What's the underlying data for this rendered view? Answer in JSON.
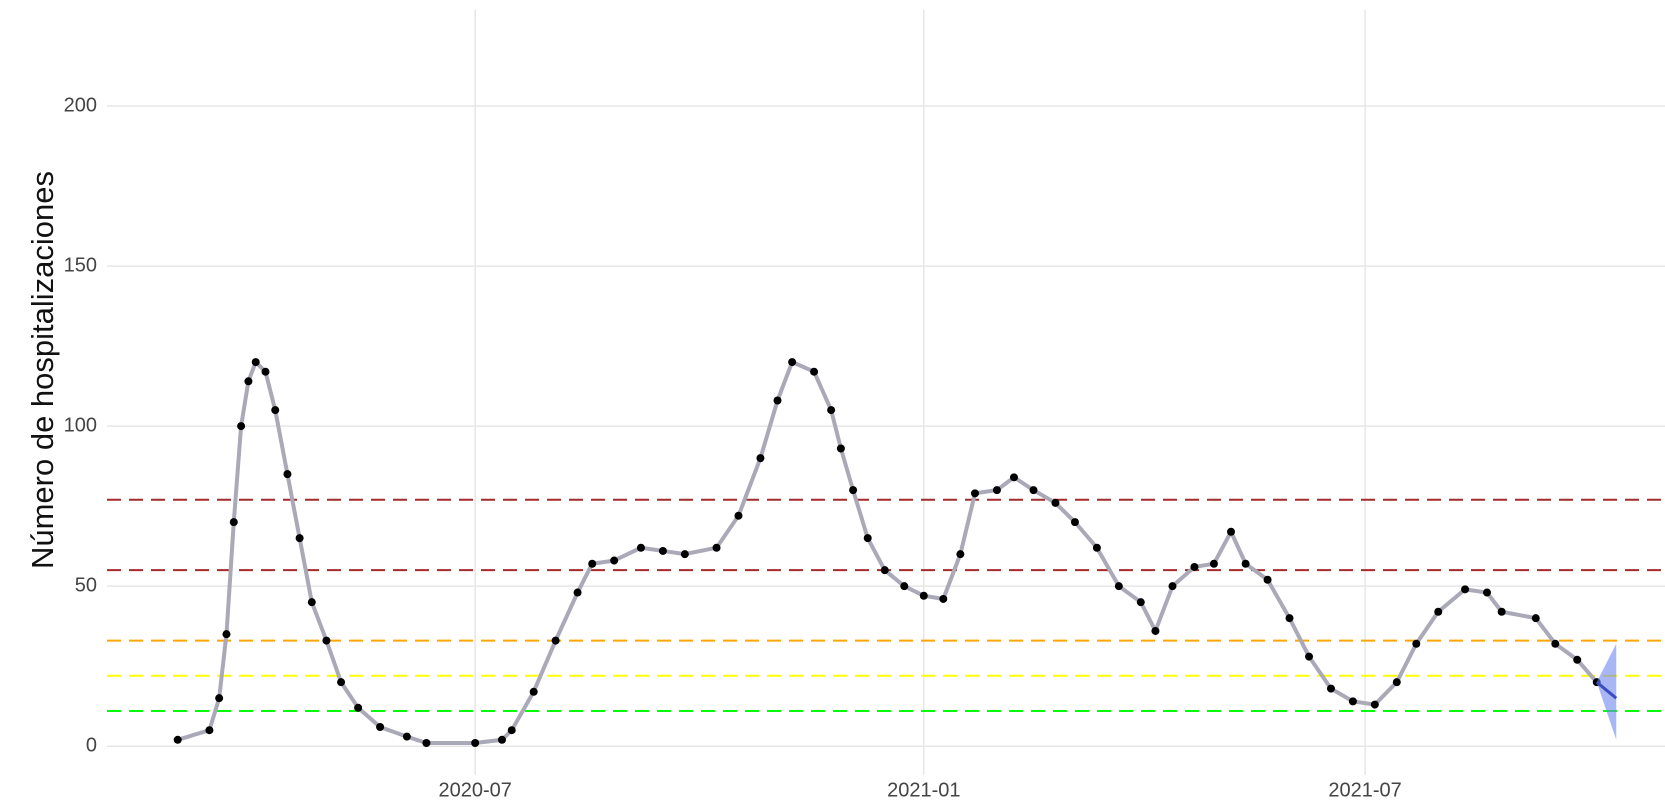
{
  "chart_data": {
    "type": "line",
    "ylabel": "Número de hospitalizaciones",
    "xlim": [
      "2020-02-01",
      "2021-11-01"
    ],
    "xticks": [
      "2020-07",
      "2021-01",
      "2021-07"
    ],
    "ylim": [
      -9,
      230
    ],
    "yticks": [
      0,
      50,
      100,
      150,
      200
    ],
    "grid": true,
    "series": [
      {
        "color": "#000000",
        "line_color": "#a9a9b8",
        "x": [
          "2020-03-01",
          "2020-03-14",
          "2020-03-18",
          "2020-03-21",
          "2020-03-24",
          "2020-03-27",
          "2020-03-30",
          "2020-04-02",
          "2020-04-06",
          "2020-04-10",
          "2020-04-15",
          "2020-04-20",
          "2020-04-25",
          "2020-05-01",
          "2020-05-07",
          "2020-05-14",
          "2020-05-23",
          "2020-06-03",
          "2020-06-11",
          "2020-07-01",
          "2020-07-12",
          "2020-07-16",
          "2020-07-25",
          "2020-08-03",
          "2020-08-12",
          "2020-08-18",
          "2020-08-27",
          "2020-09-07",
          "2020-09-16",
          "2020-09-25",
          "2020-10-08",
          "2020-10-17",
          "2020-10-26",
          "2020-11-02",
          "2020-11-08",
          "2020-11-17",
          "2020-11-24",
          "2020-11-28",
          "2020-12-03",
          "2020-12-09",
          "2020-12-16",
          "2020-12-24",
          "2021-01-01",
          "2021-01-09",
          "2021-01-16",
          "2021-01-22",
          "2021-01-31",
          "2021-02-07",
          "2021-02-15",
          "2021-02-24",
          "2021-03-04",
          "2021-03-13",
          "2021-03-22",
          "2021-03-31",
          "2021-04-06",
          "2021-04-13",
          "2021-04-22",
          "2021-04-30",
          "2021-05-07",
          "2021-05-13",
          "2021-05-22",
          "2021-05-31",
          "2021-06-08",
          "2021-06-17",
          "2021-06-26",
          "2021-07-05",
          "2021-07-14",
          "2021-07-22",
          "2021-07-31",
          "2021-08-11",
          "2021-08-20",
          "2021-08-26",
          "2021-09-09",
          "2021-09-17",
          "2021-09-26",
          "2021-10-04"
        ],
        "values": [
          2,
          5,
          15,
          35,
          70,
          100,
          114,
          120,
          117,
          105,
          85,
          65,
          45,
          33,
          20,
          12,
          6,
          3,
          1,
          1,
          2,
          5,
          17,
          33,
          48,
          57,
          58,
          62,
          61,
          60,
          62,
          72,
          90,
          108,
          120,
          117,
          105,
          93,
          80,
          65,
          55,
          50,
          47,
          46,
          60,
          79,
          80,
          84,
          80,
          76,
          70,
          62,
          50,
          45,
          36,
          50,
          56,
          57,
          67,
          57,
          52,
          40,
          28,
          18,
          14,
          13,
          20,
          32,
          42,
          49,
          48,
          42,
          40,
          32,
          27,
          20
        ]
      },
      {
        "color": "#3b4cc0",
        "band_color": "#6f86f0",
        "x": [
          "2021-10-04",
          "2021-10-12"
        ],
        "values": [
          20,
          15
        ],
        "lower": [
          20,
          2
        ],
        "upper": [
          20,
          32
        ]
      }
    ],
    "hlines": [
      {
        "value": 77,
        "color": "#a52a2a"
      },
      {
        "value": 55,
        "color": "#a52a2a"
      },
      {
        "value": 33,
        "color": "#ffa500"
      },
      {
        "value": 22,
        "color": "#ffff00"
      },
      {
        "value": 11,
        "color": "#00ff00"
      }
    ]
  }
}
